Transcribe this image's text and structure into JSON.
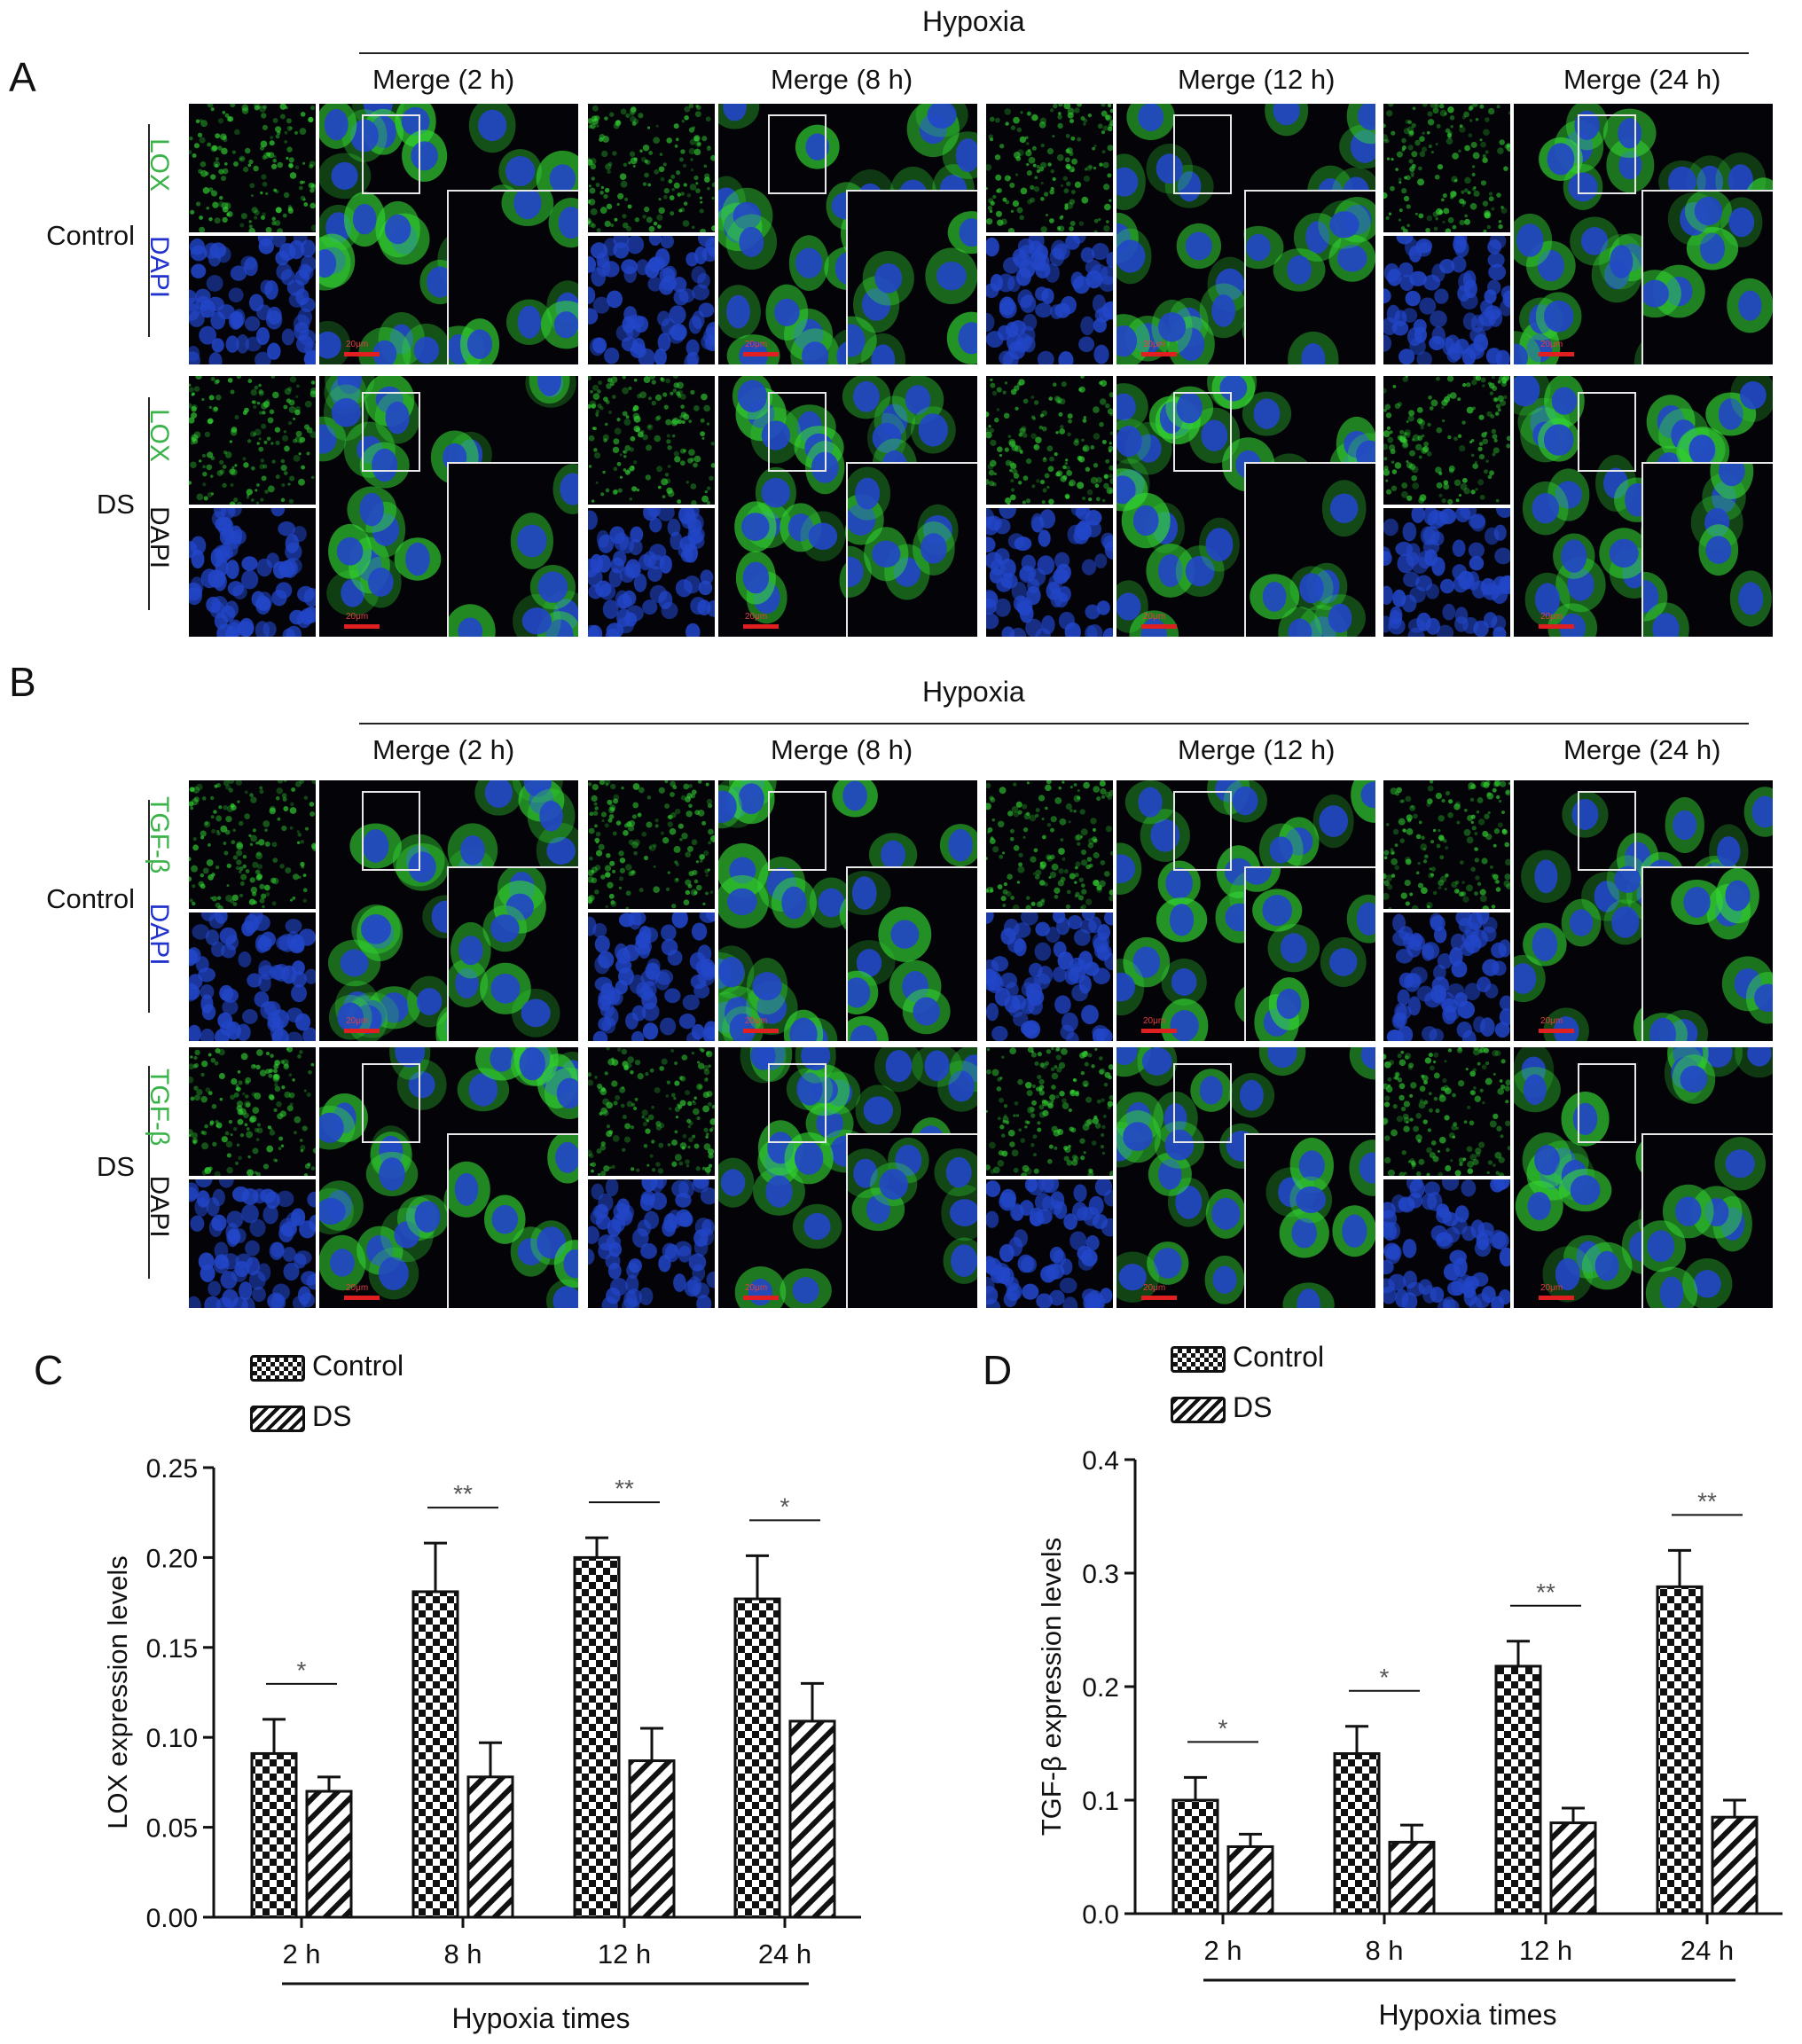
{
  "panels": {
    "A": {
      "letter": "A",
      "hypoxia": "Hypoxia",
      "merge_labels": [
        "Merge (2 h)",
        "Merge (8 h)",
        "Merge (12 h)",
        "Merge (24 h)"
      ],
      "rows": [
        {
          "group": "Control",
          "marker": "LOX",
          "stain": "DAPI"
        },
        {
          "group": "DS",
          "marker": "LOX",
          "stain": "DAPI"
        }
      ],
      "scalebar": "20μm"
    },
    "B": {
      "letter": "B",
      "hypoxia": "Hypoxia",
      "merge_labels": [
        "Merge (2 h)",
        "Merge (8 h)",
        "Merge (12 h)",
        "Merge (24 h)"
      ],
      "rows": [
        {
          "group": "Control",
          "marker": "TGF-β",
          "stain": "DAPI"
        },
        {
          "group": "DS",
          "marker": "TGF-β",
          "stain": "DAPI"
        }
      ],
      "scalebar": "20μm"
    },
    "C": {
      "letter": "C"
    },
    "D": {
      "letter": "D"
    }
  },
  "colors": {
    "lox_green": "#3bb34a",
    "dapi_blue": "#2233cc",
    "scalebar_red": "#e02020",
    "fluor_bg": "#030308",
    "nucleus_blue": "#2246c8",
    "cytoplasm_green": "#33d433"
  },
  "chart_data": [
    {
      "type": "bar",
      "panel": "C",
      "categories": [
        "2 h",
        "8 h",
        "12 h",
        "24 h"
      ],
      "series": [
        {
          "name": "Control",
          "pattern": "checker",
          "values": [
            0.091,
            0.181,
            0.2,
            0.177
          ],
          "errors": [
            0.019,
            0.027,
            0.011,
            0.024
          ]
        },
        {
          "name": "DS",
          "pattern": "hatch",
          "values": [
            0.07,
            0.078,
            0.087,
            0.109
          ],
          "errors": [
            0.008,
            0.019,
            0.018,
            0.021
          ]
        }
      ],
      "significance": [
        "*",
        "**",
        "**",
        "*"
      ],
      "ylabel": "LOX expression levels",
      "xlabel": "Hypoxia times",
      "ylim": [
        0,
        0.25
      ],
      "yticks": [
        "0.00",
        "0.05",
        "0.10",
        "0.15",
        "0.20",
        "0.25"
      ],
      "legend_position": "top-left"
    },
    {
      "type": "bar",
      "panel": "D",
      "categories": [
        "2 h",
        "8 h",
        "12 h",
        "24 h"
      ],
      "series": [
        {
          "name": "Control",
          "pattern": "checker",
          "values": [
            0.1,
            0.141,
            0.218,
            0.288
          ],
          "errors": [
            0.02,
            0.024,
            0.022,
            0.032
          ]
        },
        {
          "name": "DS",
          "pattern": "hatch",
          "values": [
            0.059,
            0.063,
            0.08,
            0.085
          ],
          "errors": [
            0.011,
            0.015,
            0.013,
            0.015
          ]
        }
      ],
      "significance": [
        "*",
        "*",
        "**",
        "**"
      ],
      "ylabel": "TGF-β expression levels",
      "xlabel": "Hypoxia times",
      "ylim": [
        0,
        0.4
      ],
      "yticks": [
        "0.0",
        "0.1",
        "0.2",
        "0.3",
        "0.4"
      ],
      "legend_position": "top-left"
    }
  ]
}
